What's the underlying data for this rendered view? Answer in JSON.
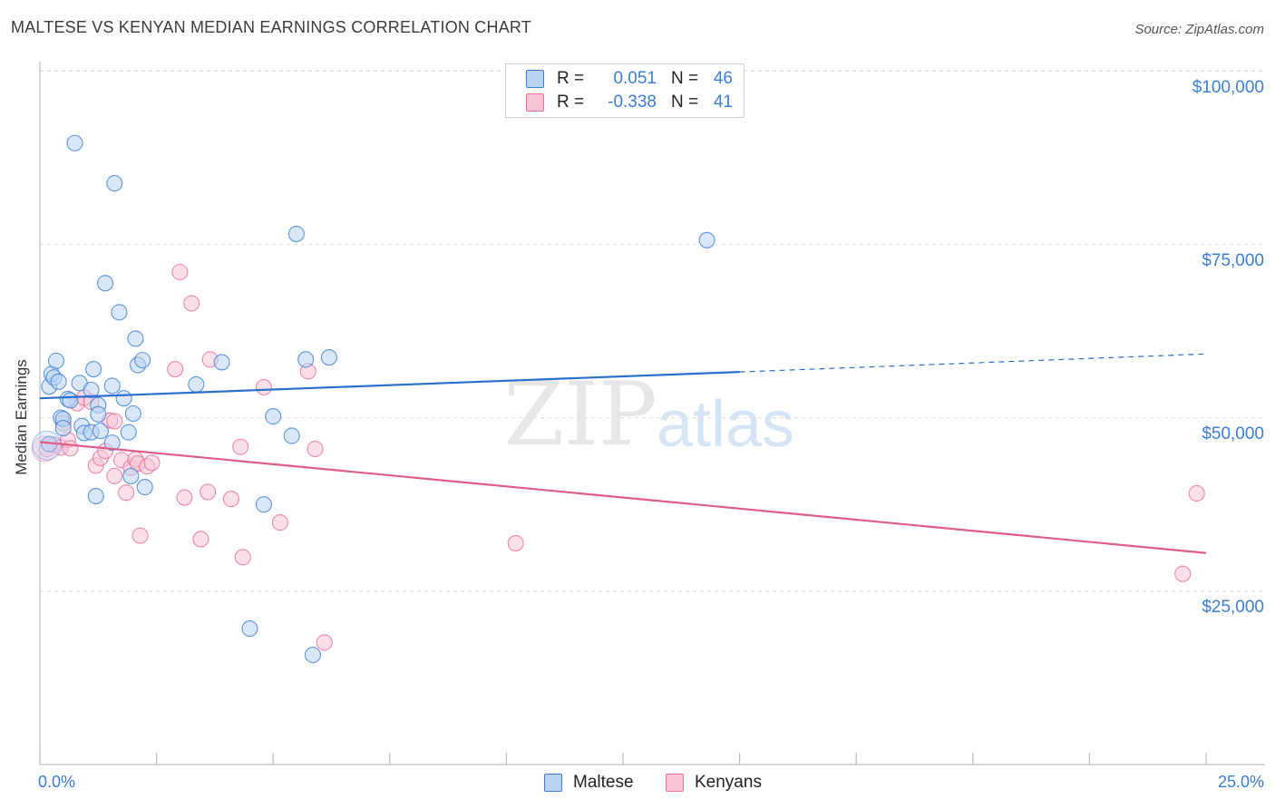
{
  "header": {
    "title": "MALTESE VS KENYAN MEDIAN EARNINGS CORRELATION CHART",
    "source": "Source: ZipAtlas.com"
  },
  "watermark": {
    "part1": "ZIP",
    "part2": "atlas"
  },
  "colors": {
    "maltese_fill": "#b9d3f3",
    "maltese_stroke": "#3b7dd8",
    "maltese_line": "#2a6fd0",
    "kenyans_fill": "#f8c6d5",
    "kenyans_stroke": "#e86f98",
    "kenyans_line": "#e05d8a",
    "axis_blue": "#3b7dd8"
  },
  "legend": {
    "rows": [
      {
        "series": "maltese",
        "r_label": "R =",
        "r_value": "0.051",
        "n_label": "N =",
        "n_value": "46"
      },
      {
        "series": "kenyans",
        "r_label": "R =",
        "r_value": "-0.338",
        "n_label": "N =",
        "n_value": "41"
      }
    ]
  },
  "bottom_legend": {
    "maltese": "Maltese",
    "kenyans": "Kenyans"
  },
  "chart_data": {
    "type": "scatter",
    "title": "MALTESE VS KENYAN MEDIAN EARNINGS CORRELATION CHART",
    "xlabel": "",
    "ylabel": "Median Earnings",
    "xlim": [
      0,
      25
    ],
    "ylim": [
      0,
      103000
    ],
    "x_tick_labels": {
      "min": "0.0%",
      "max": "25.0%"
    },
    "y_ticks": [
      {
        "value": 25000,
        "label": "$25,000"
      },
      {
        "value": 50000,
        "label": "$50,000"
      },
      {
        "value": 75000,
        "label": "$75,000"
      },
      {
        "value": 100000,
        "label": "$100,000"
      }
    ],
    "grid": true,
    "series": [
      {
        "name": "Maltese",
        "r": 0.051,
        "n": 46,
        "trend": {
          "x0": 0,
          "y0": 52800,
          "x1": 15,
          "y1": 56600,
          "dash_x1": 25,
          "dash_y1": 59200
        },
        "points": [
          [
            0.2,
            46200
          ],
          [
            0.2,
            54500
          ],
          [
            0.25,
            56300
          ],
          [
            0.3,
            55800
          ],
          [
            0.35,
            58200
          ],
          [
            0.4,
            55200
          ],
          [
            0.45,
            50000
          ],
          [
            0.5,
            49800
          ],
          [
            0.6,
            52700
          ],
          [
            0.65,
            52500
          ],
          [
            0.75,
            89600
          ],
          [
            0.85,
            55000
          ],
          [
            0.9,
            48800
          ],
          [
            0.95,
            47800
          ],
          [
            1.1,
            47900
          ],
          [
            1.1,
            54000
          ],
          [
            1.15,
            57000
          ],
          [
            1.2,
            38700
          ],
          [
            1.25,
            51800
          ],
          [
            1.3,
            48100
          ],
          [
            1.4,
            69400
          ],
          [
            1.25,
            50500
          ],
          [
            1.55,
            46400
          ],
          [
            1.6,
            83800
          ],
          [
            1.7,
            65200
          ],
          [
            1.8,
            52800
          ],
          [
            1.9,
            47900
          ],
          [
            1.95,
            41600
          ],
          [
            2.0,
            50600
          ],
          [
            2.05,
            61400
          ],
          [
            2.1,
            57600
          ],
          [
            2.2,
            58300
          ],
          [
            2.25,
            40000
          ],
          [
            3.35,
            54800
          ],
          [
            3.9,
            58000
          ],
          [
            4.5,
            19600
          ],
          [
            4.8,
            37500
          ],
          [
            5.0,
            50200
          ],
          [
            5.4,
            47400
          ],
          [
            5.5,
            76500
          ],
          [
            5.7,
            58400
          ],
          [
            5.85,
            15800
          ],
          [
            6.2,
            58700
          ],
          [
            14.3,
            75600
          ],
          [
            1.55,
            54600
          ],
          [
            0.5,
            48500
          ]
        ]
      },
      {
        "name": "Kenyans",
        "r": -0.338,
        "n": 41,
        "trend": {
          "x0": 0,
          "y0": 46500,
          "x1": 25,
          "y1": 30500
        },
        "points": [
          [
            0.15,
            45500
          ],
          [
            0.3,
            46100
          ],
          [
            0.45,
            45700
          ],
          [
            0.5,
            49200
          ],
          [
            0.6,
            46800
          ],
          [
            0.65,
            45600
          ],
          [
            0.8,
            52100
          ],
          [
            0.95,
            52900
          ],
          [
            1.1,
            52300
          ],
          [
            1.2,
            43100
          ],
          [
            1.3,
            44200
          ],
          [
            1.4,
            45200
          ],
          [
            1.5,
            49600
          ],
          [
            1.6,
            41600
          ],
          [
            1.75,
            43900
          ],
          [
            1.85,
            39200
          ],
          [
            1.95,
            42800
          ],
          [
            2.05,
            44000
          ],
          [
            2.1,
            43400
          ],
          [
            2.15,
            33000
          ],
          [
            2.3,
            43000
          ],
          [
            2.4,
            43500
          ],
          [
            2.9,
            57000
          ],
          [
            3.0,
            71000
          ],
          [
            3.1,
            38500
          ],
          [
            3.25,
            66500
          ],
          [
            3.45,
            32500
          ],
          [
            3.6,
            39300
          ],
          [
            3.65,
            58400
          ],
          [
            4.1,
            38300
          ],
          [
            4.3,
            45800
          ],
          [
            4.35,
            29900
          ],
          [
            4.8,
            54400
          ],
          [
            5.15,
            34900
          ],
          [
            5.75,
            56700
          ],
          [
            5.9,
            45500
          ],
          [
            6.1,
            17600
          ],
          [
            10.2,
            31900
          ],
          [
            24.5,
            27500
          ],
          [
            24.8,
            39100
          ],
          [
            1.6,
            49500
          ]
        ]
      }
    ]
  }
}
